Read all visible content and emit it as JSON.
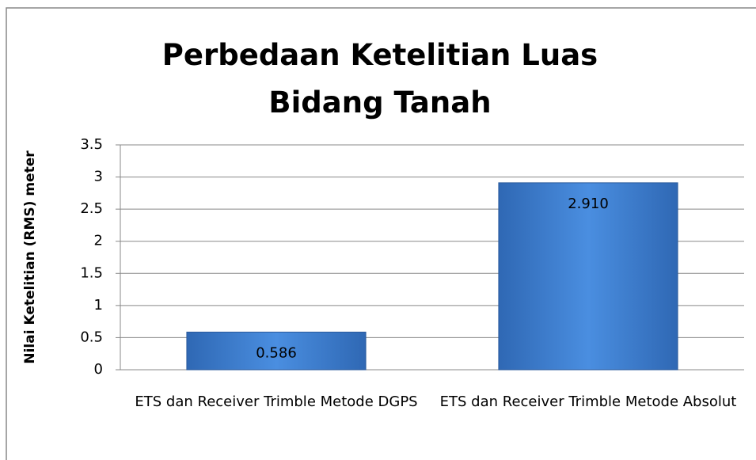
{
  "chart_data": {
    "type": "bar",
    "title": "Perbedaan Ketelitian Luas Bidang Tanah",
    "y_label": "Nilai Ketelitian (RMS) meter",
    "categories": [
      "ETS dan Receiver Trimble Metode DGPS",
      "ETS dan Receiver Trimble Metode Absolut"
    ],
    "values": [
      0.586,
      2.91
    ],
    "value_labels": [
      "0.586",
      "2.910"
    ],
    "color": "#3f7fcf",
    "ylim": [
      0,
      3.5
    ],
    "yticks": [
      0,
      0.5,
      1,
      1.5,
      2,
      2.5,
      3,
      3.5
    ],
    "grid": true
  }
}
